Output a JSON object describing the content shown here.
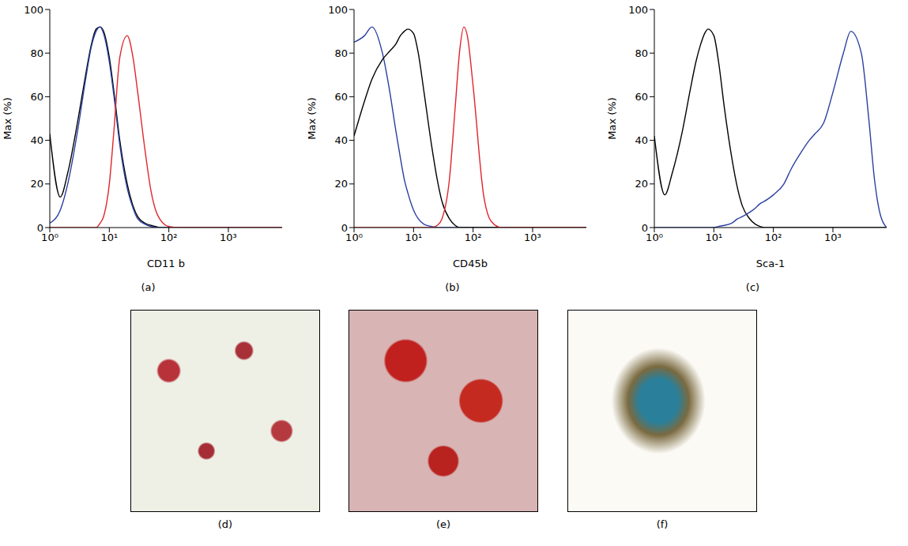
{
  "chart_data": [
    {
      "type": "line",
      "label": "(a)",
      "x_label": "CD11 b",
      "y_label": "Max (%)",
      "log": "x",
      "xlim": [
        1,
        8000
      ],
      "xticks": [
        {
          "value": 1,
          "label": "10⁰"
        },
        {
          "value": 10,
          "label": "10¹"
        },
        {
          "value": 100,
          "label": "10²"
        },
        {
          "value": 1000,
          "label": "10³"
        }
      ],
      "ylim": [
        0,
        100
      ],
      "yticks": [
        0,
        20,
        40,
        60,
        80,
        100
      ],
      "x": [
        1,
        1.5,
        2,
        3,
        4,
        5,
        6,
        7,
        8,
        10,
        12,
        15,
        20,
        25,
        30,
        40,
        50,
        60,
        70,
        80,
        100,
        150,
        200,
        300,
        400,
        500,
        700,
        1000,
        1500,
        2000,
        3000,
        4000,
        5000,
        6000,
        8000
      ],
      "series": [
        {
          "color": "#000000",
          "values": [
            43,
            14,
            25,
            50,
            70,
            84,
            91,
            92,
            90,
            78,
            62,
            40,
            20,
            10,
            5,
            2,
            1,
            0.5,
            0,
            0,
            0,
            0,
            0,
            0,
            0,
            0,
            0,
            0,
            0,
            0,
            0,
            0,
            0,
            0,
            0
          ]
        },
        {
          "color": "#2b3fa0",
          "values": [
            2,
            8,
            20,
            46,
            68,
            83,
            90,
            92,
            89,
            76,
            60,
            38,
            18,
            9,
            4,
            1.5,
            0.5,
            0,
            0,
            0,
            0,
            0,
            0,
            0,
            0,
            0,
            0,
            0,
            0,
            0,
            0,
            0,
            0,
            0,
            0
          ]
        },
        {
          "color": "#e0262b",
          "values": [
            0,
            0,
            0,
            0,
            0,
            0,
            0,
            2,
            5,
            20,
            45,
            78,
            88,
            78,
            62,
            35,
            17,
            8,
            4,
            2,
            0.5,
            0,
            0,
            0,
            0,
            0,
            0,
            0,
            0,
            0,
            0,
            0,
            0,
            0,
            0
          ]
        }
      ]
    },
    {
      "type": "line",
      "label": "(b)",
      "x_label": "CD45b",
      "y_label": "Max (%)",
      "log": "x",
      "xlim": [
        1,
        8000
      ],
      "xticks": [
        {
          "value": 1,
          "label": "10⁰"
        },
        {
          "value": 10,
          "label": "10¹"
        },
        {
          "value": 100,
          "label": "10²"
        },
        {
          "value": 1000,
          "label": "10³"
        }
      ],
      "ylim": [
        0,
        100
      ],
      "yticks": [
        0,
        20,
        40,
        60,
        80,
        100
      ],
      "x": [
        1,
        1.5,
        2,
        3,
        4,
        5,
        6,
        7,
        8,
        10,
        12,
        15,
        20,
        25,
        30,
        40,
        50,
        60,
        70,
        80,
        100,
        150,
        200,
        300,
        400,
        500,
        700,
        1000,
        1500,
        2000,
        3000,
        4000,
        5000,
        6000,
        8000
      ],
      "series": [
        {
          "color": "#2b3fa0",
          "values": [
            85,
            88,
            92,
            80,
            62,
            45,
            32,
            22,
            16,
            8,
            4,
            1.5,
            0.5,
            0,
            0,
            0,
            0,
            0,
            0,
            0,
            0,
            0,
            0,
            0,
            0,
            0,
            0,
            0,
            0,
            0,
            0,
            0,
            0,
            0,
            0
          ]
        },
        {
          "color": "#000000",
          "values": [
            42,
            58,
            68,
            77,
            81,
            84,
            88,
            90,
            91,
            89,
            80,
            62,
            38,
            22,
            12,
            4,
            1,
            0,
            0,
            0,
            0,
            0,
            0,
            0,
            0,
            0,
            0,
            0,
            0,
            0,
            0,
            0,
            0,
            0,
            0
          ]
        },
        {
          "color": "#e0262b",
          "values": [
            0,
            0,
            0,
            0,
            0,
            0,
            0,
            0,
            0,
            0,
            0,
            0,
            0,
            1,
            4,
            22,
            55,
            82,
            92,
            88,
            65,
            15,
            3,
            0,
            0,
            0,
            0,
            0,
            0,
            0,
            0,
            0,
            0,
            0,
            0
          ]
        }
      ]
    },
    {
      "type": "line",
      "label": "(c)",
      "x_label": "Sca-1",
      "y_label": "Max (%)",
      "log": "x",
      "xlim": [
        1,
        8000
      ],
      "xticks": [
        {
          "value": 1,
          "label": "10⁰"
        },
        {
          "value": 10,
          "label": "10¹"
        },
        {
          "value": 100,
          "label": "10²"
        },
        {
          "value": 1000,
          "label": "10³"
        }
      ],
      "ylim": [
        0,
        100
      ],
      "yticks": [
        0,
        20,
        40,
        60,
        80,
        100
      ],
      "x": [
        1,
        1.5,
        2,
        3,
        4,
        5,
        6,
        7,
        8,
        10,
        12,
        15,
        20,
        25,
        30,
        40,
        50,
        60,
        70,
        80,
        100,
        150,
        200,
        300,
        400,
        500,
        700,
        1000,
        1500,
        2000,
        3000,
        4000,
        5000,
        6000,
        8000
      ],
      "series": [
        {
          "color": "#000000",
          "values": [
            42,
            15,
            25,
            45,
            63,
            76,
            84,
            89,
            91,
            88,
            76,
            55,
            32,
            18,
            10,
            4,
            1.5,
            0.5,
            0,
            0,
            0,
            0,
            0,
            0,
            0,
            0,
            0,
            0,
            0,
            0,
            0,
            0,
            0,
            0,
            0
          ]
        },
        {
          "color": "#2b3fa0",
          "values": [
            0,
            0,
            0,
            0,
            0,
            0,
            0,
            0,
            0,
            0,
            0.5,
            1,
            2,
            4,
            5,
            7,
            9,
            11,
            12,
            13,
            15,
            20,
            27,
            35,
            40,
            43,
            48,
            62,
            80,
            90,
            80,
            50,
            22,
            8,
            0
          ]
        }
      ]
    }
  ],
  "images": [
    {
      "label": "(d)"
    },
    {
      "label": "(e)"
    },
    {
      "label": "(f)"
    }
  ]
}
